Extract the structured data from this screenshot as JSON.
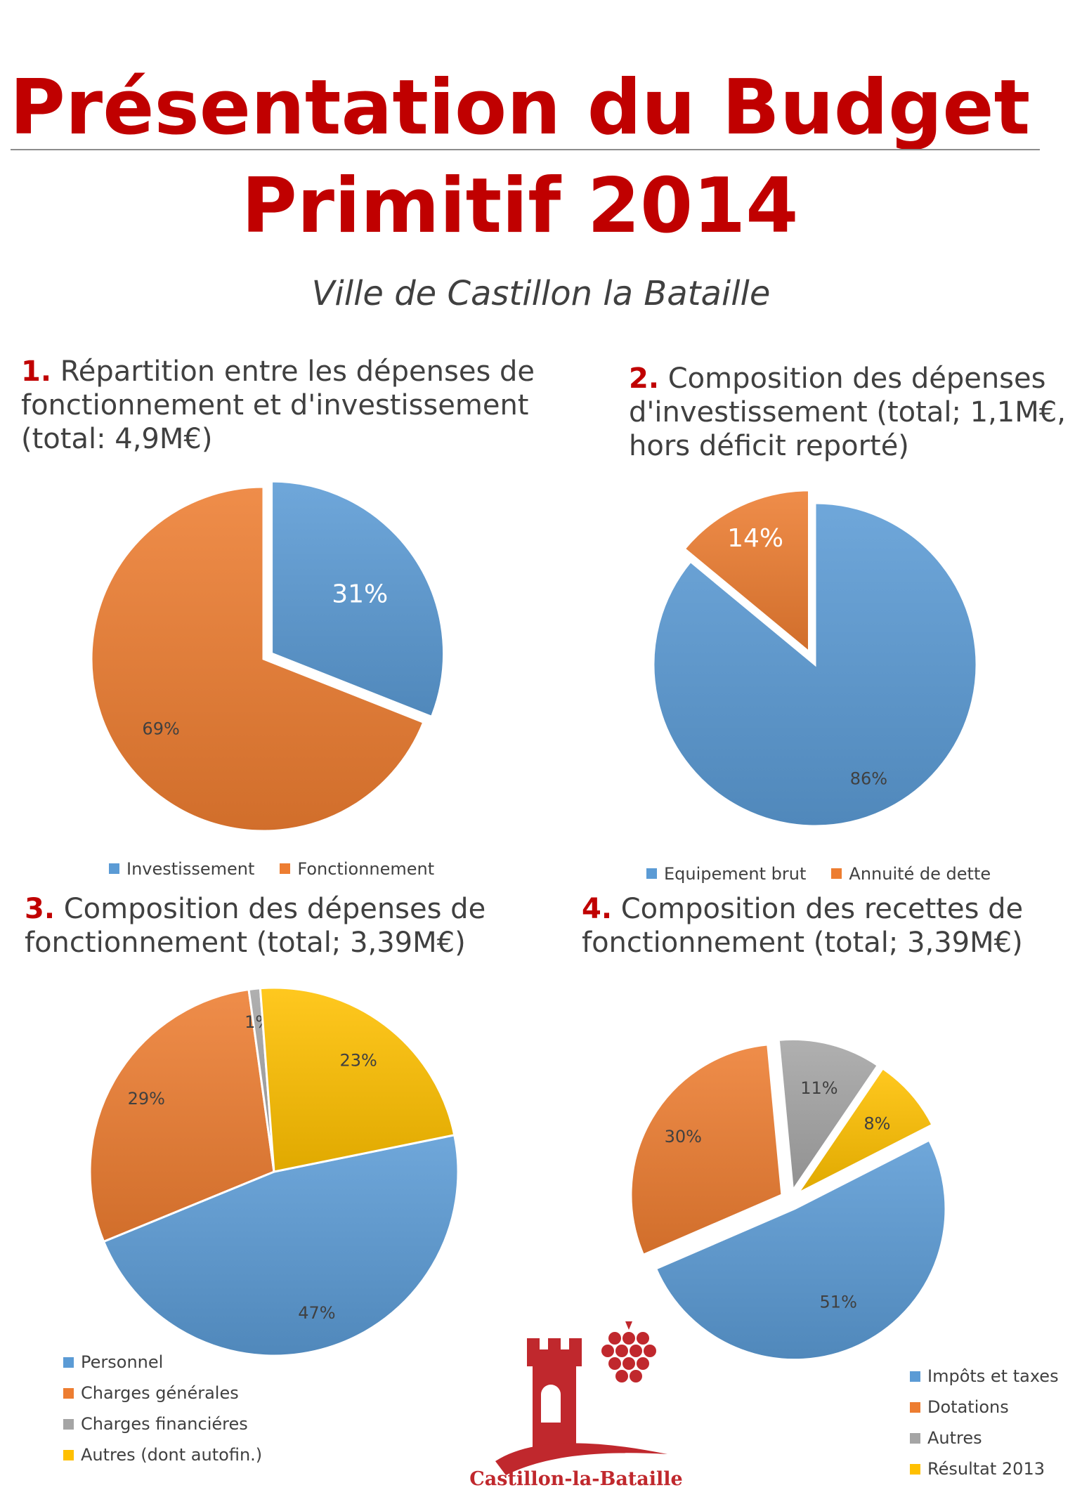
{
  "header": {
    "title_line1": "Présentation du Budget",
    "title_line2": "Primitif 2014",
    "subtitle": "Ville de Castillon la Bataille"
  },
  "sections": [
    {
      "num": "1.",
      "lines": [
        "Répartition entre les dépenses de",
        "fonctionnement et d'investissement",
        "(total: 4,9M€)"
      ]
    },
    {
      "num": "2.",
      "lines": [
        "Composition des dépenses",
        "d'investissement (total; 1,1M€,",
        "hors déficit reporté)"
      ]
    },
    {
      "num": "3.",
      "lines": [
        "Composition des dépenses de",
        "fonctionnement (total; 3,39M€)"
      ]
    },
    {
      "num": "4.",
      "lines": [
        "Composition des recettes de",
        "fonctionnement (total; 3,39M€)"
      ]
    }
  ],
  "colors": {
    "blue": "#5b9bd5",
    "orange": "#ed7d31",
    "gray": "#a5a5a5",
    "yellow": "#ffc000",
    "title_red": "#c00000"
  },
  "chart_data": [
    {
      "type": "pie",
      "title": "Répartition entre les dépenses de fonctionnement et d'investissement (total: 4,9M€)",
      "categories": [
        "Investissement",
        "Fonctionnement"
      ],
      "values": [
        31,
        69
      ],
      "labels": [
        "31%",
        "69%"
      ],
      "colors": [
        "#5b9bd5",
        "#ed7d31"
      ],
      "exploded": [
        true,
        false
      ],
      "legend": "bottom"
    },
    {
      "type": "pie",
      "title": "Composition des dépenses d'investissement (total; 1,1M€, hors déficit reporté)",
      "categories": [
        "Equipement brut",
        "Annuité de dette"
      ],
      "values": [
        86,
        14
      ],
      "labels": [
        "86%",
        "14%"
      ],
      "colors": [
        "#5b9bd5",
        "#ed7d31"
      ],
      "exploded": [
        false,
        true
      ],
      "legend": "bottom"
    },
    {
      "type": "pie",
      "title": "Composition des dépenses de fonctionnement (total; 3,39M€)",
      "categories": [
        "Personnel",
        "Charges générales",
        "Charges financiéres",
        "Autres (dont autofin.)"
      ],
      "values": [
        47,
        29,
        1,
        23
      ],
      "labels": [
        "47%",
        "29%",
        "1%",
        "23%"
      ],
      "colors": [
        "#5b9bd5",
        "#ed7d31",
        "#a5a5a5",
        "#ffc000"
      ],
      "exploded": [
        false,
        false,
        false,
        false
      ],
      "legend": "bottom-left"
    },
    {
      "type": "pie",
      "title": "Composition des recettes de fonctionnement (total; 3,39M€)",
      "categories": [
        "Impôts et taxes",
        "Dotations",
        "Autres",
        "Résultat 2013"
      ],
      "values": [
        51,
        30,
        11,
        8
      ],
      "labels": [
        "51%",
        "30%",
        "11%",
        "8%"
      ],
      "colors": [
        "#5b9bd5",
        "#ed7d31",
        "#a5a5a5",
        "#ffc000"
      ],
      "exploded": [
        true,
        true,
        true,
        true
      ],
      "legend": "bottom-right"
    }
  ],
  "logo": {
    "text": "Castillon-la-Bataille",
    "icon": "castle-tower-grapes-logo"
  }
}
